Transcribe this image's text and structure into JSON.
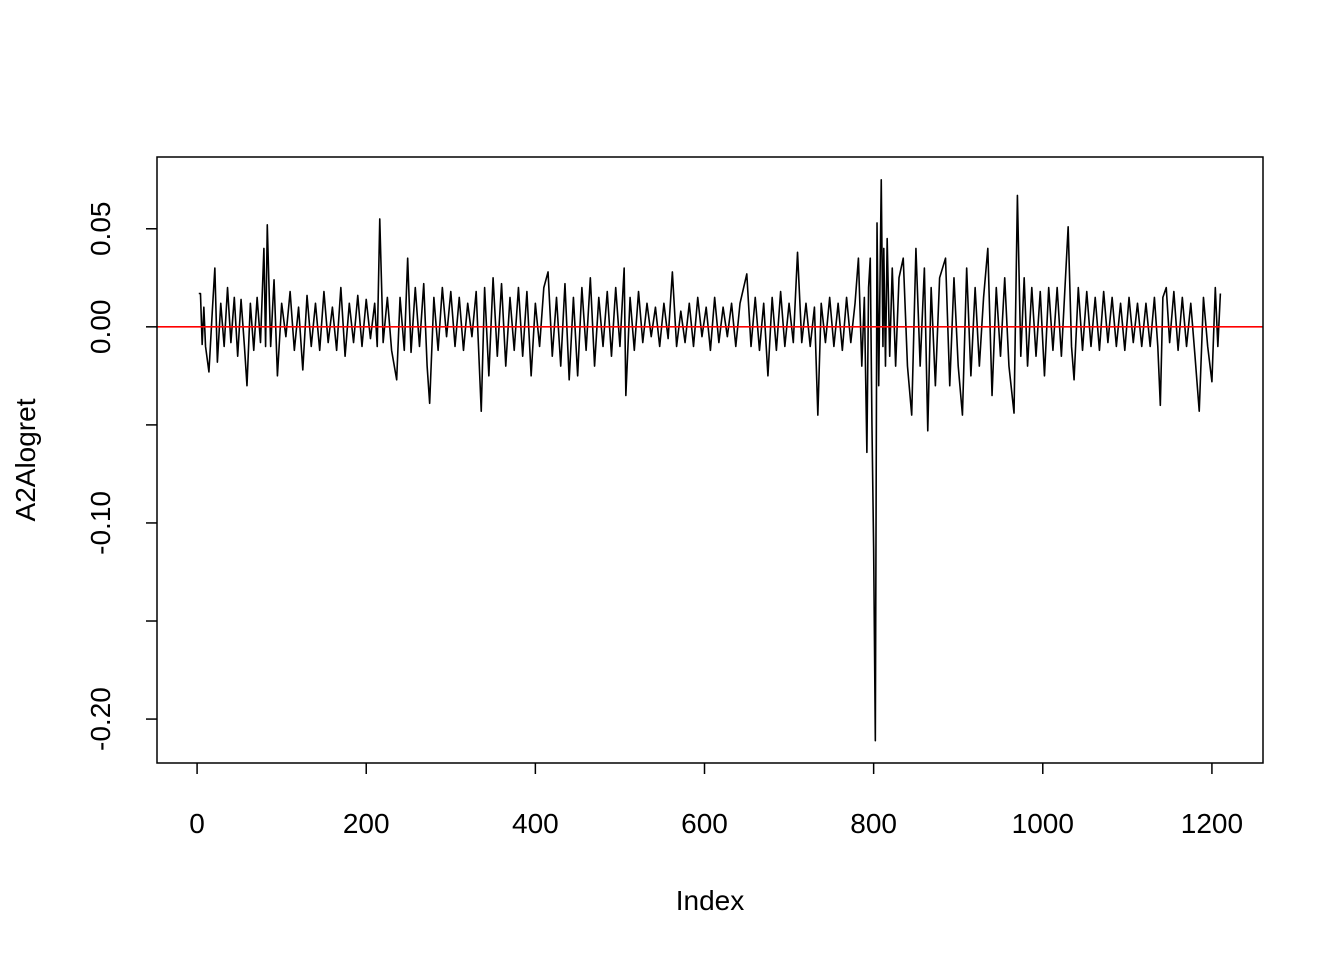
{
  "chart_data": {
    "type": "line",
    "xlabel": "Index",
    "ylabel": "A2Alogret",
    "xlim": [
      -47.4,
      1260.4
    ],
    "ylim": [
      -0.2224,
      0.0866
    ],
    "xticks": [
      0,
      200,
      400,
      600,
      800,
      1000,
      1200
    ],
    "yticks": [
      {
        "value": -0.2,
        "label": "-0.20"
      },
      {
        "value": -0.1,
        "label": "-0.10"
      },
      {
        "value": 0,
        "label": "0.00"
      },
      {
        "value": 0.05,
        "label": "0.05"
      }
    ],
    "yminor_ticks": [
      -0.15,
      -0.05
    ],
    "hline": {
      "value": 0,
      "color": "#ff0000"
    },
    "series": [
      {
        "color": "#000000",
        "x": [
          2,
          4,
          6,
          8,
          10,
          14,
          18,
          21,
          24,
          28,
          32,
          36,
          40,
          44,
          48,
          52,
          56,
          59,
          63,
          67,
          71,
          75,
          79,
          81,
          83,
          87,
          91,
          95,
          100,
          105,
          110,
          115,
          120,
          125,
          130,
          135,
          140,
          145,
          150,
          155,
          160,
          165,
          170,
          175,
          180,
          185,
          190,
          195,
          200,
          205,
          210,
          213,
          216,
          220,
          225,
          230,
          236,
          240,
          245,
          249,
          253,
          258,
          263,
          268,
          272,
          275,
          280,
          285,
          290,
          295,
          300,
          305,
          310,
          315,
          320,
          325,
          330,
          336,
          340,
          345,
          350,
          355,
          360,
          365,
          370,
          375,
          380,
          385,
          390,
          395,
          400,
          405,
          410,
          415,
          420,
          425,
          430,
          435,
          440,
          445,
          450,
          455,
          460,
          465,
          470,
          475,
          480,
          485,
          490,
          495,
          500,
          505,
          507,
          512,
          517,
          522,
          527,
          532,
          537,
          542,
          547,
          552,
          557,
          562,
          567,
          572,
          577,
          582,
          587,
          592,
          597,
          602,
          607,
          612,
          617,
          622,
          627,
          632,
          637,
          642,
          650,
          655,
          660,
          665,
          670,
          675,
          680,
          685,
          690,
          695,
          700,
          705,
          710,
          715,
          720,
          725,
          730,
          734,
          738,
          743,
          748,
          753,
          758,
          763,
          768,
          773,
          778,
          782,
          786,
          789,
          792,
          794,
          796,
          798,
          800,
          802,
          804,
          806,
          809,
          811,
          812,
          814,
          816,
          819,
          822,
          826,
          830,
          835,
          840,
          845,
          850,
          855,
          860,
          864,
          868,
          873,
          878,
          885,
          890,
          895,
          900,
          905,
          910,
          915,
          920,
          925,
          930,
          935,
          940,
          945,
          950,
          955,
          960,
          966,
          970,
          974,
          978,
          982,
          987,
          992,
          997,
          1002,
          1007,
          1012,
          1017,
          1022,
          1026,
          1030,
          1034,
          1037,
          1042,
          1047,
          1052,
          1057,
          1062,
          1067,
          1072,
          1077,
          1082,
          1087,
          1092,
          1097,
          1102,
          1107,
          1112,
          1117,
          1122,
          1127,
          1132,
          1136,
          1139,
          1142,
          1146,
          1150,
          1155,
          1160,
          1165,
          1170,
          1175,
          1180,
          1185,
          1190,
          1195,
          1200,
          1204,
          1207,
          1210
        ],
        "values": [
          0.017,
          0.017,
          -0.009,
          0.01,
          -0.01,
          -0.023,
          0.008,
          0.03,
          -0.018,
          0.012,
          -0.01,
          0.02,
          -0.008,
          0.015,
          -0.015,
          0.014,
          -0.01,
          -0.03,
          0.012,
          -0.012,
          0.015,
          -0.008,
          0.04,
          -0.01,
          0.052,
          -0.01,
          0.024,
          -0.025,
          0.012,
          -0.005,
          0.018,
          -0.012,
          0.01,
          -0.022,
          0.016,
          -0.01,
          0.012,
          -0.012,
          0.018,
          -0.008,
          0.01,
          -0.012,
          0.02,
          -0.015,
          0.012,
          -0.008,
          0.016,
          -0.01,
          0.014,
          -0.006,
          0.012,
          -0.01,
          0.055,
          -0.008,
          0.015,
          -0.012,
          -0.027,
          0.015,
          -0.012,
          0.035,
          -0.013,
          0.02,
          -0.01,
          0.022,
          -0.02,
          -0.039,
          0.015,
          -0.012,
          0.02,
          -0.005,
          0.018,
          -0.01,
          0.015,
          -0.012,
          0.012,
          -0.005,
          0.018,
          -0.043,
          0.02,
          -0.025,
          0.025,
          -0.015,
          0.022,
          -0.02,
          0.015,
          -0.012,
          0.02,
          -0.015,
          0.018,
          -0.025,
          0.012,
          -0.01,
          0.02,
          0.028,
          -0.015,
          0.015,
          -0.02,
          0.022,
          -0.027,
          0.015,
          -0.025,
          0.02,
          -0.012,
          0.025,
          -0.02,
          0.015,
          -0.01,
          0.018,
          -0.015,
          0.02,
          -0.01,
          0.03,
          -0.035,
          0.015,
          -0.012,
          0.018,
          -0.008,
          0.012,
          -0.005,
          0.01,
          -0.01,
          0.012,
          -0.006,
          0.028,
          -0.01,
          0.008,
          -0.008,
          0.012,
          -0.01,
          0.015,
          -0.005,
          0.01,
          -0.012,
          0.015,
          -0.008,
          0.01,
          -0.005,
          0.012,
          -0.01,
          0.012,
          0.027,
          -0.01,
          0.015,
          -0.012,
          0.012,
          -0.025,
          0.015,
          -0.012,
          0.018,
          -0.01,
          0.012,
          -0.008,
          0.038,
          -0.008,
          0.012,
          -0.01,
          0.01,
          -0.045,
          0.012,
          -0.008,
          0.015,
          -0.01,
          0.012,
          -0.012,
          0.015,
          -0.008,
          0.012,
          0.035,
          -0.02,
          0.015,
          -0.064,
          0.02,
          0.035,
          -0.05,
          -0.113,
          -0.211,
          0.053,
          -0.03,
          0.075,
          -0.01,
          0.04,
          -0.02,
          0.045,
          -0.015,
          0.03,
          -0.02,
          0.025,
          0.035,
          -0.02,
          -0.045,
          0.04,
          -0.02,
          0.03,
          -0.053,
          0.02,
          -0.03,
          0.025,
          0.035,
          -0.03,
          0.025,
          -0.02,
          -0.045,
          0.03,
          -0.025,
          0.02,
          -0.02,
          0.015,
          0.04,
          -0.035,
          0.02,
          -0.015,
          0.025,
          -0.02,
          -0.044,
          0.067,
          -0.015,
          0.025,
          -0.02,
          0.02,
          -0.015,
          0.018,
          -0.025,
          0.02,
          -0.012,
          0.02,
          -0.015,
          0.018,
          0.051,
          -0.01,
          -0.027,
          0.02,
          -0.012,
          0.018,
          -0.01,
          0.015,
          -0.012,
          0.018,
          -0.008,
          0.015,
          -0.01,
          0.012,
          -0.012,
          0.015,
          -0.008,
          0.012,
          -0.01,
          0.012,
          -0.01,
          0.015,
          -0.01,
          -0.04,
          0.015,
          0.02,
          -0.008,
          0.018,
          -0.012,
          0.015,
          -0.01,
          0.012,
          -0.015,
          -0.043,
          0.015,
          -0.01,
          -0.028,
          0.02,
          -0.01,
          0.017
        ]
      }
    ]
  }
}
